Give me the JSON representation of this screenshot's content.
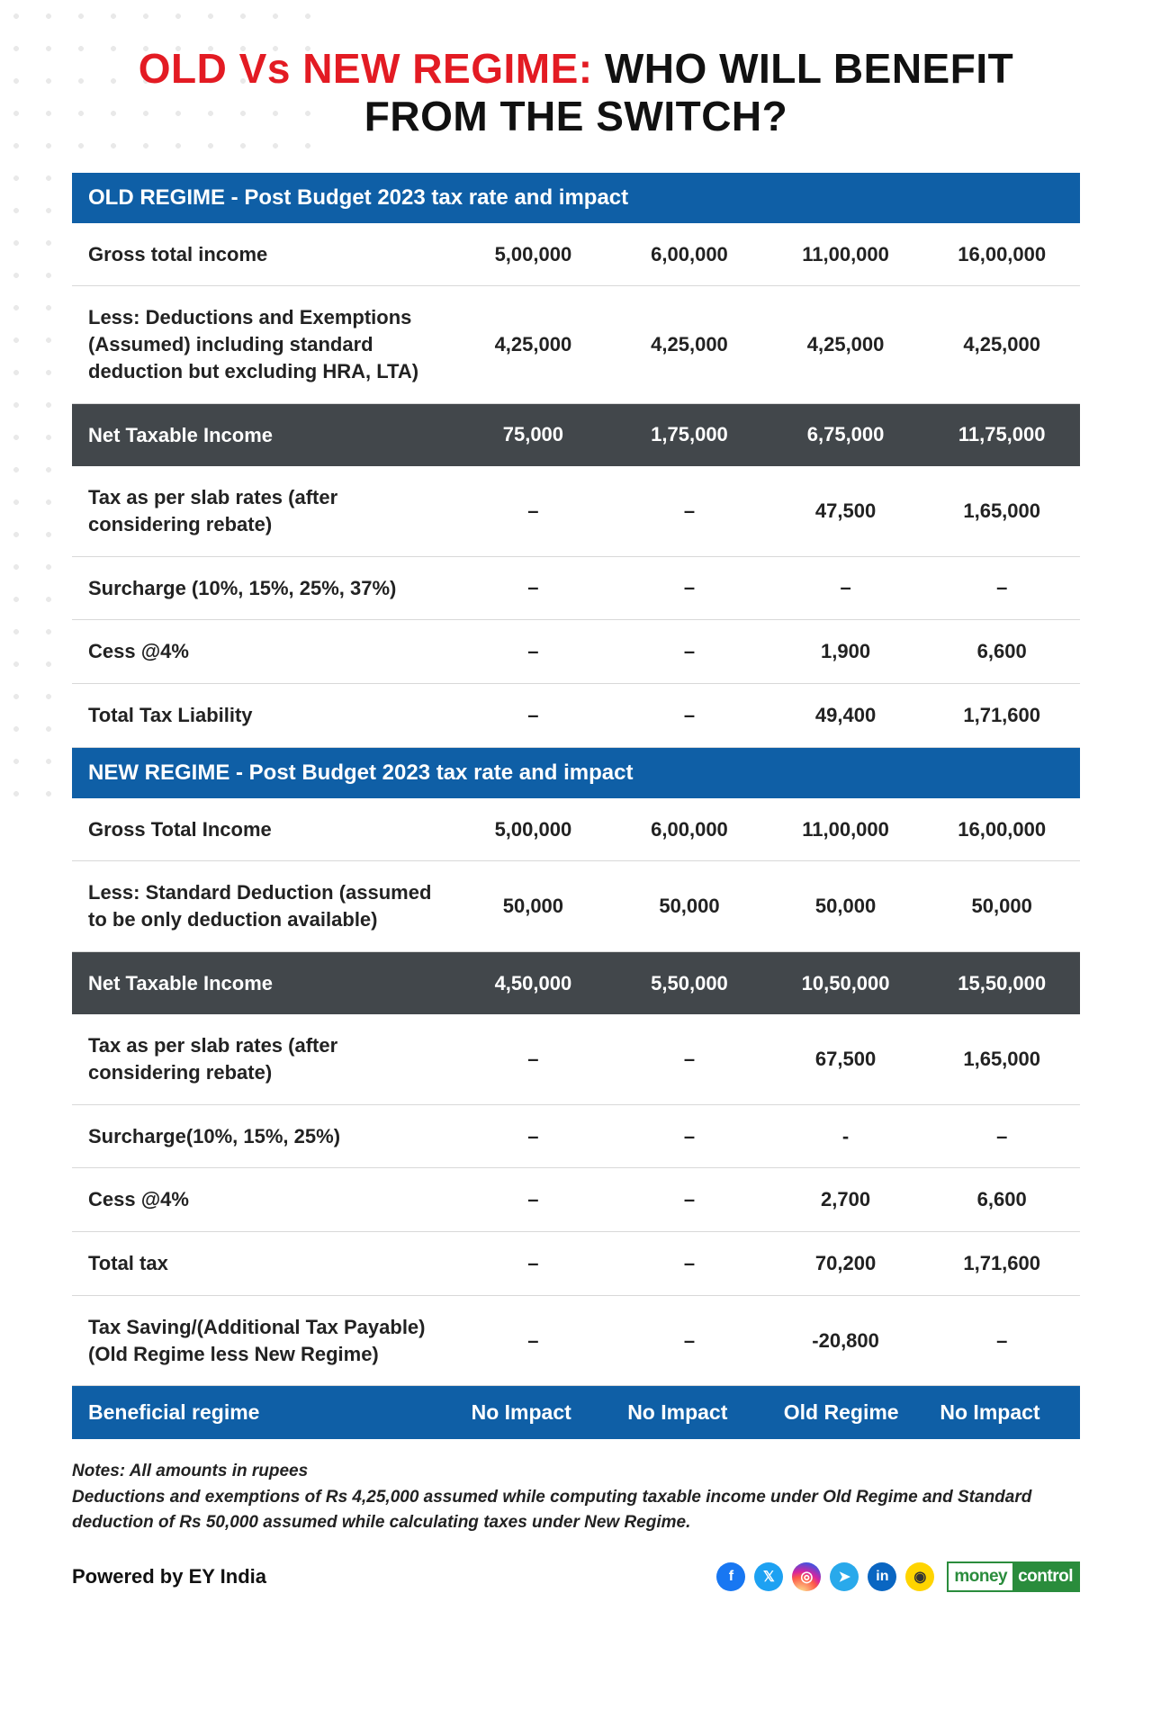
{
  "title": {
    "part1": "OLD Vs NEW REGIME:",
    "part2": " WHO WILL BENEFIT FROM THE SWITCH?",
    "color_red": "#e31b23",
    "color_black": "#111111",
    "fontsize": 46
  },
  "colors": {
    "header_bg": "#0f5fa6",
    "header_text": "#ffffff",
    "dark_row_bg": "#42474b",
    "row_border": "#d8d8d8",
    "body_text": "#222222",
    "page_bg": "#ffffff"
  },
  "old_regime": {
    "header": "OLD REGIME - Post Budget 2023 tax rate and impact",
    "rows": [
      {
        "label": "Gross total income",
        "v": [
          "5,00,000",
          "6,00,000",
          "11,00,000",
          "16,00,000"
        ],
        "style": "normal"
      },
      {
        "label": "Less: Deductions and Exemptions (Assumed) including standard deduction but excluding HRA, LTA)",
        "v": [
          "4,25,000",
          "4,25,000",
          "4,25,000",
          "4,25,000"
        ],
        "style": "normal"
      },
      {
        "label": "Net Taxable Income",
        "v": [
          "75,000",
          "1,75,000",
          "6,75,000",
          "11,75,000"
        ],
        "style": "dark"
      },
      {
        "label": "Tax as per slab rates (after considering rebate)",
        "v": [
          "–",
          "–",
          "47,500",
          "1,65,000"
        ],
        "style": "normal"
      },
      {
        "label": "Surcharge (10%, 15%, 25%, 37%)",
        "v": [
          "–",
          "–",
          "–",
          "–"
        ],
        "style": "normal"
      },
      {
        "label": "Cess @4%",
        "v": [
          "–",
          "–",
          "1,900",
          "6,600"
        ],
        "style": "normal"
      },
      {
        "label": "Total Tax Liability",
        "v": [
          "–",
          "–",
          "49,400",
          "1,71,600"
        ],
        "style": "normal"
      }
    ]
  },
  "new_regime": {
    "header": "NEW REGIME - Post Budget 2023 tax rate and impact",
    "rows": [
      {
        "label": "Gross Total Income",
        "v": [
          "5,00,000",
          "6,00,000",
          "11,00,000",
          "16,00,000"
        ],
        "style": "normal"
      },
      {
        "label": "Less: Standard Deduction (assumed to be only deduction available)",
        "v": [
          "50,000",
          "50,000",
          "50,000",
          "50,000"
        ],
        "style": "normal"
      },
      {
        "label": "Net Taxable Income",
        "v": [
          "4,50,000",
          "5,50,000",
          "10,50,000",
          "15,50,000"
        ],
        "style": "dark"
      },
      {
        "label": "Tax as per slab rates (after considering rebate)",
        "v": [
          "–",
          "–",
          "67,500",
          "1,65,000"
        ],
        "style": "normal"
      },
      {
        "label": "Surcharge(10%, 15%, 25%)",
        "v": [
          "–",
          "–",
          "-",
          "–"
        ],
        "style": "normal"
      },
      {
        "label": "Cess @4%",
        "v": [
          "–",
          "–",
          "2,700",
          "6,600"
        ],
        "style": "normal"
      },
      {
        "label": "Total tax",
        "v": [
          "–",
          "–",
          "70,200",
          "1,71,600"
        ],
        "style": "normal"
      },
      {
        "label": "Tax Saving/(Additional Tax Payable) (Old Regime less New Regime)",
        "v": [
          "–",
          "–",
          "-20,800",
          "–"
        ],
        "style": "normal"
      }
    ]
  },
  "beneficial": {
    "label": "Beneficial regime",
    "v": [
      "No Impact",
      "No Impact",
      "Old Regime",
      "No Impact"
    ]
  },
  "notes": {
    "line1": "Notes: All amounts in rupees",
    "line2": "Deductions and exemptions of Rs 4,25,000 assumed while computing taxable income under Old Regime and Standard deduction of Rs 50,000 assumed while calculating taxes under New Regime."
  },
  "footer": {
    "powered": "Powered by EY India",
    "social": [
      {
        "name": "facebook-icon",
        "glyph": "f",
        "cls": "fb"
      },
      {
        "name": "twitter-icon",
        "glyph": "𝕏",
        "cls": "tw"
      },
      {
        "name": "instagram-icon",
        "glyph": "◎",
        "cls": "ig"
      },
      {
        "name": "telegram-icon",
        "glyph": "➤",
        "cls": "tg"
      },
      {
        "name": "linkedin-icon",
        "glyph": "in",
        "cls": "li"
      },
      {
        "name": "koo-icon",
        "glyph": "◉",
        "cls": "ko"
      }
    ],
    "brand": {
      "p1": "money",
      "p2": "control"
    }
  }
}
